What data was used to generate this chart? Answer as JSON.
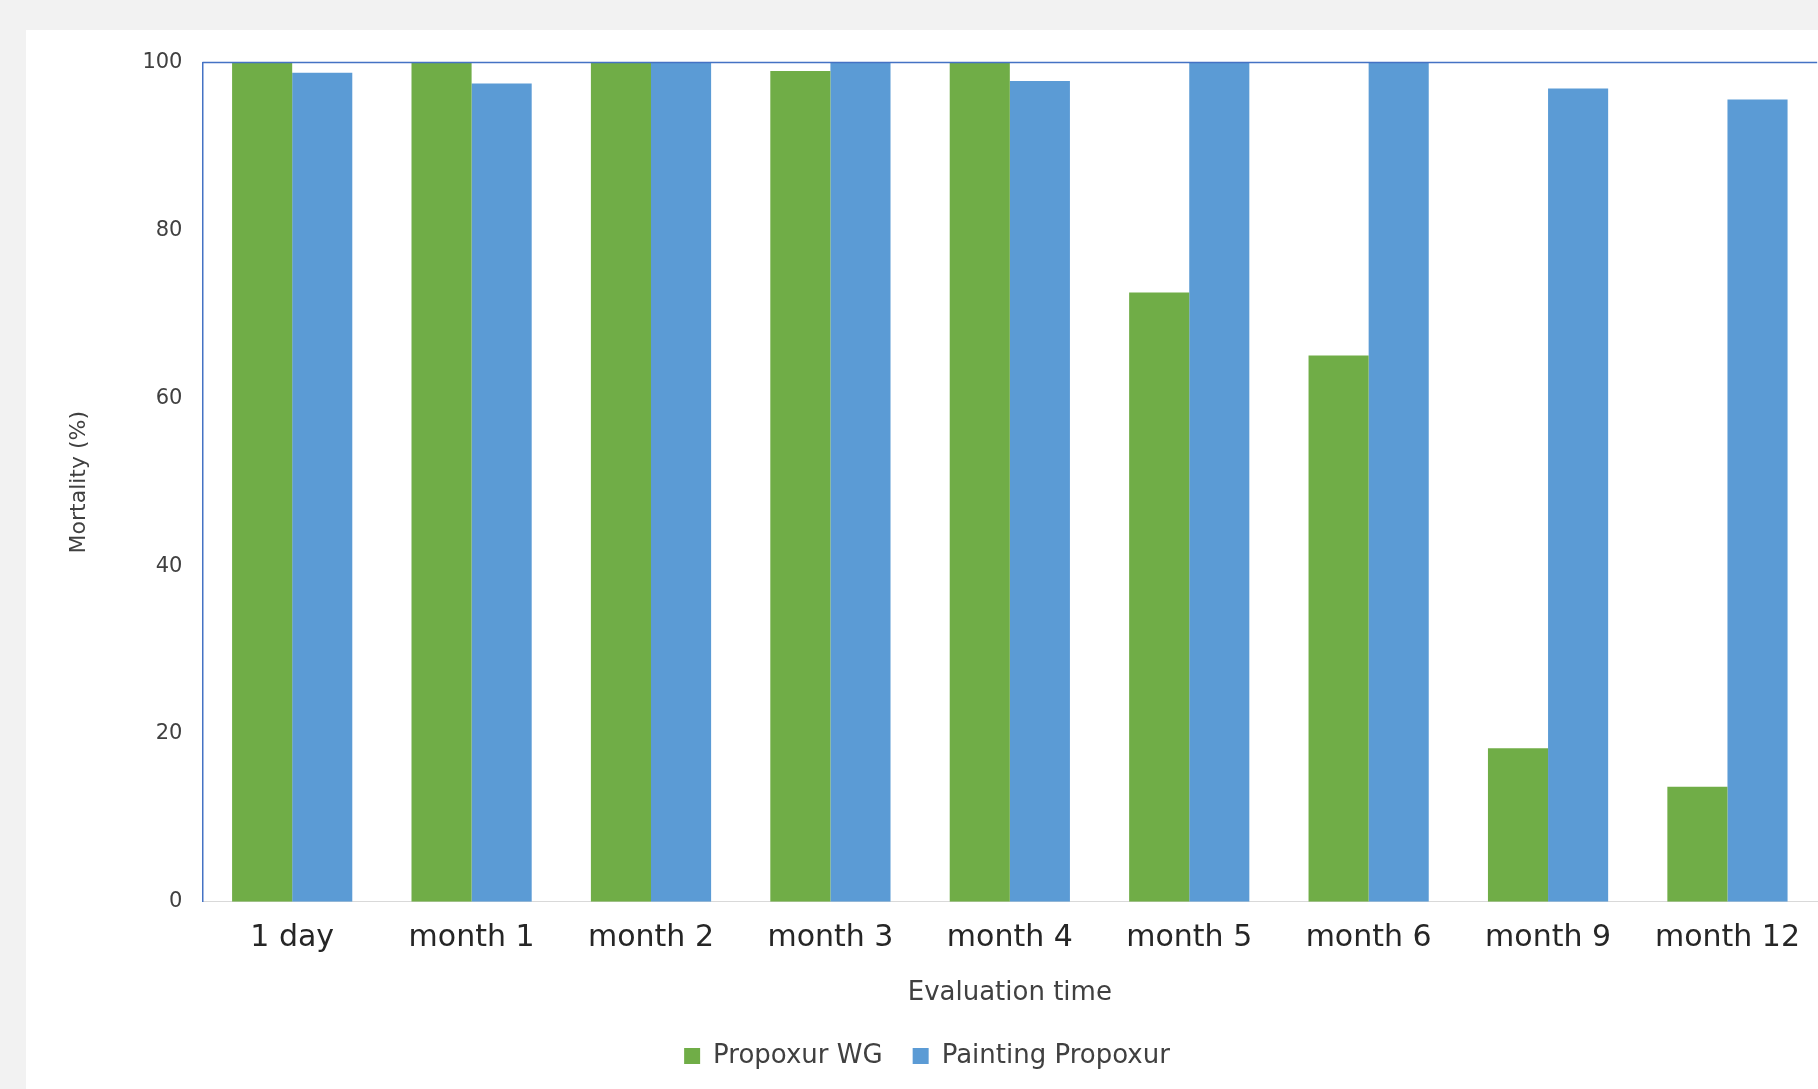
{
  "chart_data": {
    "type": "bar",
    "xlabel": "Evaluation time",
    "ylabel": "Mortality (%)",
    "categories": [
      "1 day",
      "month 1",
      "month 2",
      "month 3",
      "month 4",
      "month 5",
      "month 6",
      "month 9",
      "month 12"
    ],
    "series": [
      {
        "name": "Propoxur WG",
        "color": "#70ad47",
        "values": [
          100,
          100,
          100,
          99,
          100,
          72.6,
          65.1,
          18.3,
          13.7
        ]
      },
      {
        "name": "Painting Propoxur",
        "color": "#5b9bd5",
        "values": [
          98.8,
          97.5,
          100,
          100,
          97.8,
          100,
          100,
          96.9,
          95.6
        ]
      }
    ],
    "ylim": [
      0,
      100
    ],
    "yticks": [
      0,
      20,
      40,
      60,
      80,
      100
    ],
    "legend": "bottom"
  }
}
